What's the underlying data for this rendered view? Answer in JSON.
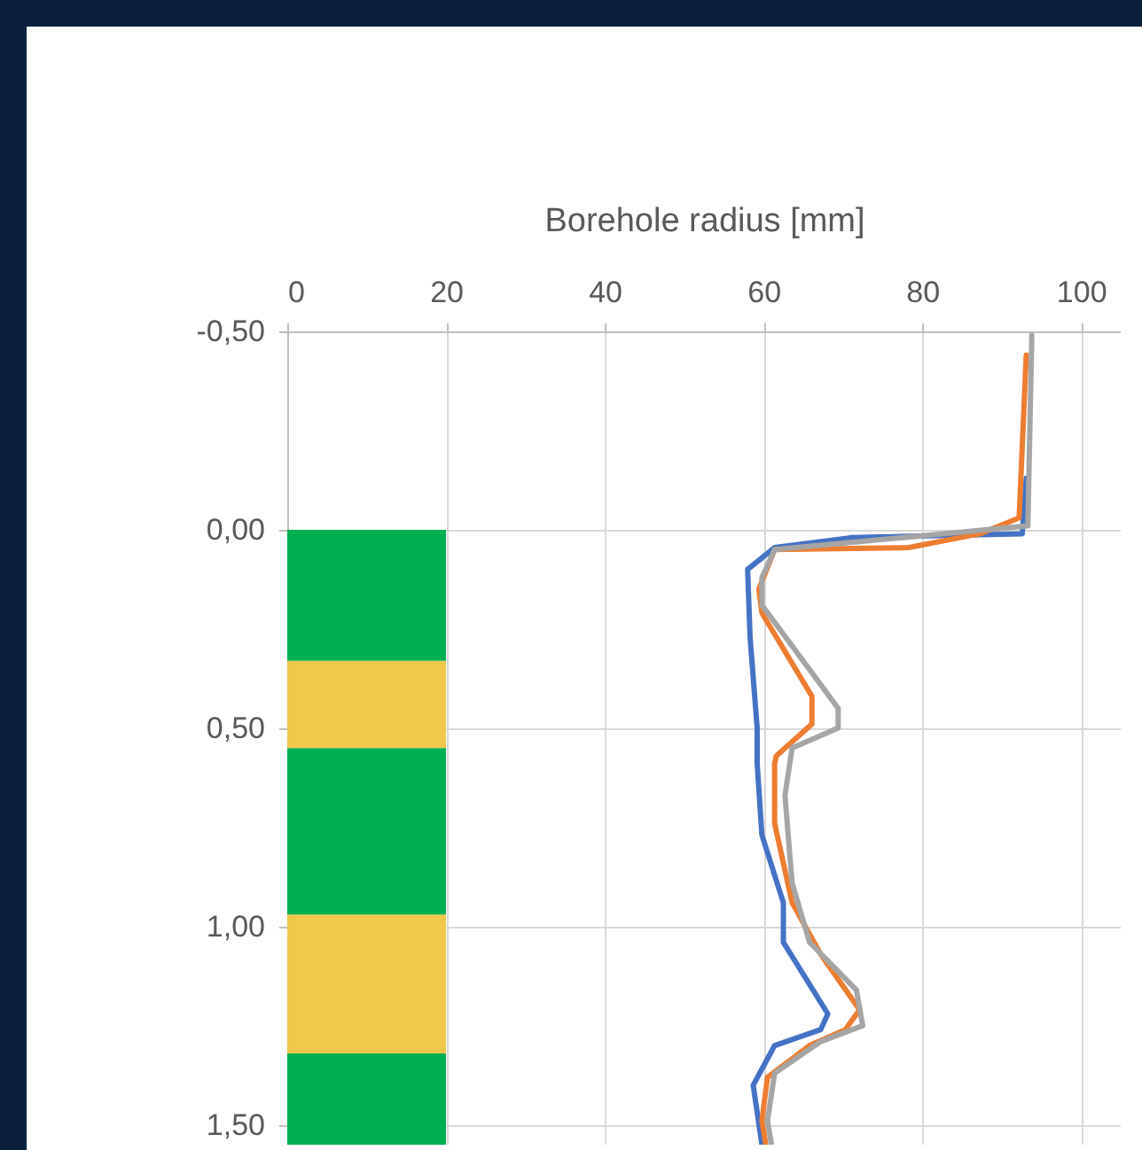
{
  "chart_data": {
    "type": "line",
    "xlabel": "Borehole radius [mm]",
    "xlim": [
      0,
      105
    ],
    "xticks": [
      0,
      20,
      40,
      60,
      80,
      100
    ],
    "ylim": [
      1.55,
      -0.5
    ],
    "yticks": [
      {
        "value": -0.5,
        "label": "-0,50"
      },
      {
        "value": 0,
        "label": "0,00"
      },
      {
        "value": 0.5,
        "label": "0,50"
      },
      {
        "value": 1,
        "label": "1,00"
      },
      {
        "value": 1.5,
        "label": "1,50"
      }
    ],
    "grid": true,
    "line_style": "solid",
    "marker": "none",
    "bands": [
      {
        "axis": "y",
        "from": 0,
        "to": 0.33,
        "color": "#00b050"
      },
      {
        "axis": "y",
        "from": 0.33,
        "to": 0.55,
        "color": "#f0c84c"
      },
      {
        "axis": "y",
        "from": 0.55,
        "to": 0.97,
        "color": "#00b050"
      },
      {
        "axis": "y",
        "from": 0.97,
        "to": 1.32,
        "color": "#f0c84c"
      },
      {
        "axis": "y",
        "from": 1.32,
        "to": 1.55,
        "color": "#00b050"
      }
    ],
    "series": [
      {
        "color": "#4472c4",
        "x": [
          93.1,
          92.6,
          71,
          61.4,
          58,
          58.3,
          59.2,
          59.2,
          59.8,
          62.5,
          62.5,
          68.1,
          67.2,
          61.4,
          58.7,
          59.8
        ],
        "values": [
          -0.13,
          0.01,
          0.02,
          0.045,
          0.1,
          0.27,
          0.5,
          0.59,
          0.77,
          0.94,
          1.04,
          1.22,
          1.26,
          1.3,
          1.4,
          1.55
        ]
      },
      {
        "color": "#ed7d31",
        "x": [
          93.1,
          92.2,
          87.3,
          78.3,
          61.4,
          59.4,
          59.8,
          66.1,
          66.1,
          61.6,
          61.4,
          61.4,
          63.6,
          67.2,
          72.1,
          70.3,
          65.8,
          60.5,
          59.8,
          60.3
        ],
        "values": [
          -0.44,
          -0.03,
          0.01,
          0.045,
          0.05,
          0.15,
          0.21,
          0.42,
          0.49,
          0.57,
          0.59,
          0.74,
          0.94,
          1.07,
          1.21,
          1.26,
          1.3,
          1.38,
          1.49,
          1.55
        ]
      },
      {
        "color": "#a5a5a5",
        "x": [
          93.8,
          93.3,
          61.4,
          59.8,
          59.8,
          69.4,
          69.4,
          63.6,
          62.7,
          63.6,
          65.8,
          71.7,
          72.5,
          67.2,
          61.4,
          60.5,
          61
        ],
        "values": [
          -0.49,
          -0.01,
          0.05,
          0.12,
          0.19,
          0.45,
          0.5,
          0.55,
          0.67,
          0.89,
          1.04,
          1.16,
          1.25,
          1.29,
          1.37,
          1.49,
          1.55
        ]
      }
    ]
  }
}
